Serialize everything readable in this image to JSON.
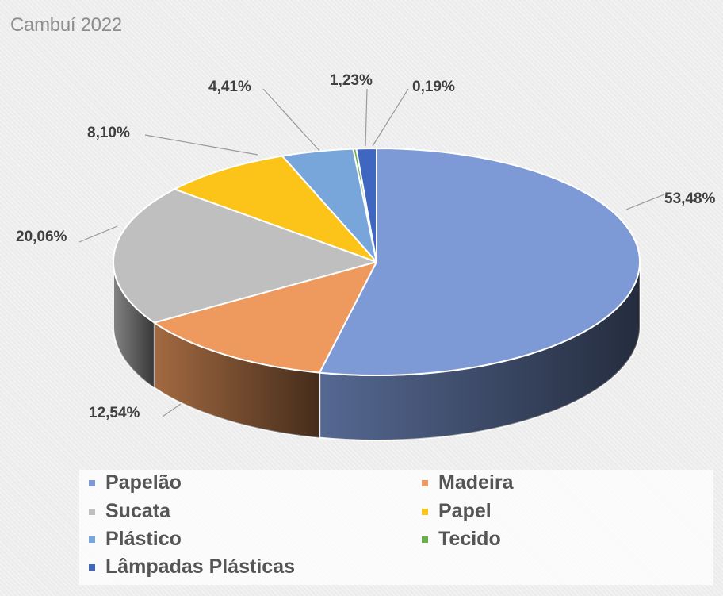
{
  "chart_data": {
    "type": "pie",
    "title": "Cambuí 2022",
    "labels": [
      "Papelão",
      "Madeira",
      "Sucata",
      "Papel",
      "Plástico",
      "Tecido",
      "Lâmpadas Plásticas"
    ],
    "values": [
      53.48,
      12.54,
      20.06,
      8.1,
      4.41,
      0.19,
      1.23
    ],
    "value_labels": [
      "53,48%",
      "12,54%",
      "20,06%",
      "8,10%",
      "4,41%",
      "0,19%",
      "1,23%"
    ],
    "colors": [
      "#7d99d6",
      "#ee9a5e",
      "#bfbfbf",
      "#fcc318",
      "#78a6da",
      "#6cb04a",
      "#3f67c1"
    ],
    "legend_position": "bottom",
    "style": "3d"
  },
  "legend": [
    {
      "label": "Papelão",
      "color": "#7d99d6"
    },
    {
      "label": "Madeira",
      "color": "#ee9a5e"
    },
    {
      "label": "Sucata",
      "color": "#bfbfbf"
    },
    {
      "label": "Papel",
      "color": "#fcc318"
    },
    {
      "label": "Plástico",
      "color": "#78a6da"
    },
    {
      "label": "Tecido",
      "color": "#6cb04a"
    },
    {
      "label": "Lâmpadas Plásticas",
      "color": "#3f67c1"
    }
  ]
}
